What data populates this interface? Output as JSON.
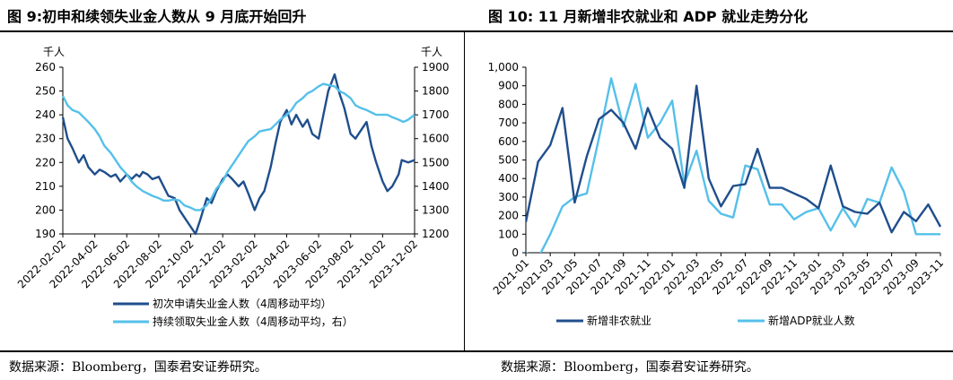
{
  "left": {
    "title": "图 9:初申和续领失业金人数从 9 月底开始回升",
    "source": "数据来源：Bloomberg，国泰君安证券研究。",
    "chart_data": {
      "type": "line",
      "left_unit": "千人",
      "right_unit": "千人",
      "ylim_left": [
        190,
        260
      ],
      "ylim_right": [
        1200,
        1900
      ],
      "yticks_left": [
        "190",
        "200",
        "210",
        "220",
        "230",
        "240",
        "250",
        "260"
      ],
      "yticks_right": [
        "1200",
        "1300",
        "1400",
        "1500",
        "1600",
        "1700",
        "1800",
        "1900"
      ],
      "xticks": [
        "2022-02-02",
        "2022-04-02",
        "2022-06-02",
        "2022-08-02",
        "2022-10-02",
        "2022-12-02",
        "2023-02-02",
        "2023-04-02",
        "2023-06-02",
        "2023-08-02",
        "2023-10-02",
        "2023-12-02"
      ],
      "series": [
        {
          "name": "初次申请失业金人数（4周移动平均）",
          "axis": "left",
          "color": "#1f4e8c",
          "x": [
            0,
            0.3,
            0.6,
            1.0,
            1.3,
            1.6,
            2.0,
            2.3,
            2.6,
            3.0,
            3.3,
            3.6,
            4.0,
            4.3,
            4.6,
            4.8,
            5.0,
            5.3,
            5.6,
            6.0,
            6.3,
            6.6,
            7.0,
            7.3,
            7.6,
            8.0,
            8.3,
            8.6,
            9.0,
            9.3,
            9.6,
            10.0,
            10.3,
            10.6,
            11.0,
            11.3,
            11.6,
            12.0,
            12.3,
            12.6,
            13.0,
            13.3,
            13.6,
            14.0,
            14.3,
            14.6,
            15.0,
            15.3,
            15.6,
            16.0,
            16.3,
            16.6,
            17.0,
            17.3,
            17.6,
            18.0,
            18.3,
            18.6,
            19.0,
            19.3,
            19.6,
            20.0,
            20.3,
            20.6,
            21.0,
            21.2,
            21.6,
            22.0
          ],
          "values": [
            239,
            230,
            226,
            220,
            223,
            218,
            215,
            217,
            216,
            214,
            215,
            212,
            215,
            213,
            215,
            214,
            216,
            215,
            213,
            214,
            210,
            206,
            205,
            200,
            197,
            193,
            190,
            196,
            205,
            203,
            208,
            213,
            215,
            213,
            210,
            212,
            207,
            200,
            205,
            208,
            218,
            228,
            237,
            242,
            236,
            240,
            235,
            238,
            232,
            230,
            240,
            250,
            257,
            249,
            243,
            232,
            230,
            233,
            237,
            227,
            220,
            212,
            208,
            210,
            215,
            221,
            220,
            221
          ]
        },
        {
          "name": "持续领取失业金人数（4周移动平均，右）",
          "axis": "right",
          "color": "#55c0ea",
          "x": [
            0,
            0.3,
            0.6,
            1.0,
            1.3,
            1.6,
            2.0,
            2.3,
            2.6,
            3.0,
            3.3,
            3.6,
            4.0,
            4.3,
            4.6,
            5.0,
            5.3,
            5.6,
            6.0,
            6.3,
            6.6,
            7.0,
            7.3,
            7.6,
            8.0,
            8.3,
            8.6,
            9.0,
            9.3,
            9.6,
            10.0,
            10.3,
            10.6,
            11.0,
            11.3,
            11.6,
            12.0,
            12.3,
            12.6,
            13.0,
            13.3,
            13.6,
            14.0,
            14.3,
            14.6,
            15.0,
            15.3,
            15.6,
            16.0,
            16.3,
            16.6,
            17.0,
            17.3,
            17.6,
            18.0,
            18.3,
            18.6,
            19.0,
            19.3,
            19.6,
            20.0,
            20.3,
            20.6,
            21.0,
            21.3,
            21.6,
            22.0
          ],
          "values": [
            1780,
            1740,
            1720,
            1710,
            1690,
            1670,
            1640,
            1610,
            1570,
            1540,
            1510,
            1480,
            1450,
            1420,
            1400,
            1380,
            1370,
            1360,
            1350,
            1340,
            1340,
            1345,
            1340,
            1320,
            1310,
            1300,
            1300,
            1320,
            1350,
            1390,
            1420,
            1460,
            1490,
            1530,
            1560,
            1590,
            1610,
            1630,
            1635,
            1640,
            1660,
            1680,
            1700,
            1720,
            1750,
            1770,
            1790,
            1800,
            1820,
            1830,
            1825,
            1820,
            1800,
            1790,
            1770,
            1740,
            1730,
            1720,
            1710,
            1700,
            1700,
            1700,
            1690,
            1680,
            1670,
            1680,
            1700
          ]
        }
      ]
    }
  },
  "right": {
    "title": "图 10:  11 月新增非农就业和 ADP 就业走势分化",
    "source": "数据来源：Bloomberg，国泰君安证券研究。",
    "chart_data": {
      "type": "line",
      "ylim": [
        0,
        1000
      ],
      "yticks": [
        "0",
        "100",
        "200",
        "300",
        "400",
        "500",
        "600",
        "700",
        "800",
        "900",
        "1,000"
      ],
      "xticks": [
        "2021-01",
        "2021-03",
        "2021-05",
        "2021-07",
        "2021-09",
        "2021-11",
        "2022-01",
        "2022-03",
        "2022-05",
        "2022-07",
        "2022-09",
        "2022-11",
        "2023-01",
        "2023-03",
        "2023-05",
        "2023-07",
        "2023-09",
        "2023-11"
      ],
      "x_months": [
        "2021-01",
        "2021-02",
        "2021-03",
        "2021-04",
        "2021-05",
        "2021-06",
        "2021-07",
        "2021-08",
        "2021-09",
        "2021-10",
        "2021-11",
        "2021-12",
        "2022-01",
        "2022-02",
        "2022-03",
        "2022-04",
        "2022-05",
        "2022-06",
        "2022-07",
        "2022-08",
        "2022-09",
        "2022-10",
        "2022-11",
        "2022-12",
        "2023-01",
        "2023-02",
        "2023-03",
        "2023-04",
        "2023-05",
        "2023-06",
        "2023-07",
        "2023-08",
        "2023-09",
        "2023-10",
        "2023-11"
      ],
      "series": [
        {
          "name": "新增非农就业",
          "color": "#1f4e8c",
          "values": [
            165,
            490,
            580,
            780,
            270,
            520,
            720,
            770,
            700,
            560,
            780,
            620,
            560,
            350,
            900,
            400,
            250,
            360,
            370,
            560,
            350,
            350,
            320,
            290,
            240,
            470,
            250,
            220,
            210,
            270,
            110,
            220,
            170,
            260,
            140
          ]
        },
        {
          "name": "新增ADP就业人数",
          "color": "#55c0ea",
          "values": [
            0,
            -30,
            100,
            250,
            300,
            320,
            620,
            940,
            680,
            910,
            620,
            700,
            820,
            370,
            550,
            280,
            210,
            190,
            470,
            450,
            260,
            260,
            180,
            220,
            240,
            120,
            240,
            140,
            290,
            270,
            460,
            330,
            100,
            100,
            100
          ]
        }
      ]
    }
  }
}
